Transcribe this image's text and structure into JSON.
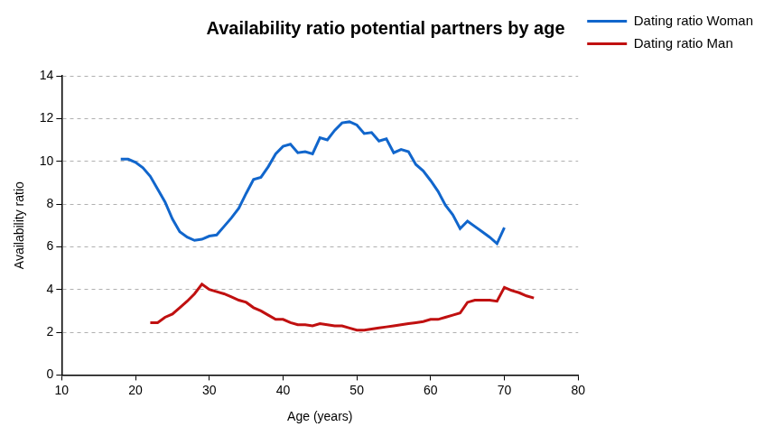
{
  "chart_data": {
    "type": "line",
    "title": "Availability ratio potential partners by age",
    "x_label": "Age (years)",
    "y_label": "Availability ratio",
    "x": [
      18,
      19,
      20,
      21,
      22,
      23,
      24,
      25,
      26,
      27,
      28,
      29,
      30,
      31,
      32,
      33,
      34,
      35,
      36,
      37,
      38,
      39,
      40,
      41,
      42,
      43,
      44,
      45,
      46,
      47,
      48,
      49,
      50,
      51,
      52,
      53,
      54,
      55,
      56,
      57,
      58,
      59,
      60,
      61,
      62,
      63,
      64,
      65,
      66,
      67,
      68,
      69,
      70,
      71,
      72,
      73,
      74
    ],
    "series": [
      {
        "name": "Dating ratio Woman",
        "color": "#1166cc",
        "values": [
          10.1,
          10.1,
          9.95,
          9.7,
          9.3,
          8.7,
          8.1,
          7.3,
          6.7,
          6.45,
          6.3,
          6.35,
          6.5,
          6.55,
          6.95,
          7.35,
          7.8,
          8.5,
          9.15,
          9.25,
          9.75,
          10.35,
          10.7,
          10.8,
          10.4,
          10.45,
          10.35,
          11.1,
          11.0,
          11.45,
          11.8,
          11.85,
          11.7,
          11.3,
          11.35,
          10.95,
          11.05,
          10.4,
          10.55,
          10.45,
          9.85,
          9.55,
          9.1,
          8.6,
          7.95,
          7.5,
          6.85,
          7.2,
          6.95,
          6.7,
          6.45,
          6.15,
          6.9,
          null,
          null,
          null,
          null
        ]
      },
      {
        "name": "Dating ratio Man",
        "color": "#c01010",
        "values": [
          null,
          null,
          null,
          null,
          2.45,
          2.45,
          2.7,
          2.85,
          3.15,
          3.45,
          3.8,
          4.25,
          4.0,
          3.9,
          3.8,
          3.65,
          3.5,
          3.4,
          3.15,
          3.0,
          2.8,
          2.6,
          2.6,
          2.45,
          2.35,
          2.35,
          2.3,
          2.4,
          2.35,
          2.3,
          2.3,
          2.2,
          2.1,
          2.1,
          2.15,
          2.2,
          2.25,
          2.3,
          2.35,
          2.4,
          2.45,
          2.5,
          2.6,
          2.6,
          2.7,
          2.8,
          2.9,
          3.4,
          3.5,
          3.5,
          3.5,
          3.45,
          4.1,
          3.95,
          3.85,
          3.7,
          3.6
        ]
      }
    ],
    "xlim": [
      10,
      80
    ],
    "xticks": [
      10,
      20,
      30,
      40,
      50,
      60,
      70,
      80
    ],
    "ylim": [
      0,
      14
    ],
    "yticks": [
      0,
      2,
      4,
      6,
      8,
      10,
      12,
      14
    ],
    "grid": true,
    "legend": "right"
  }
}
